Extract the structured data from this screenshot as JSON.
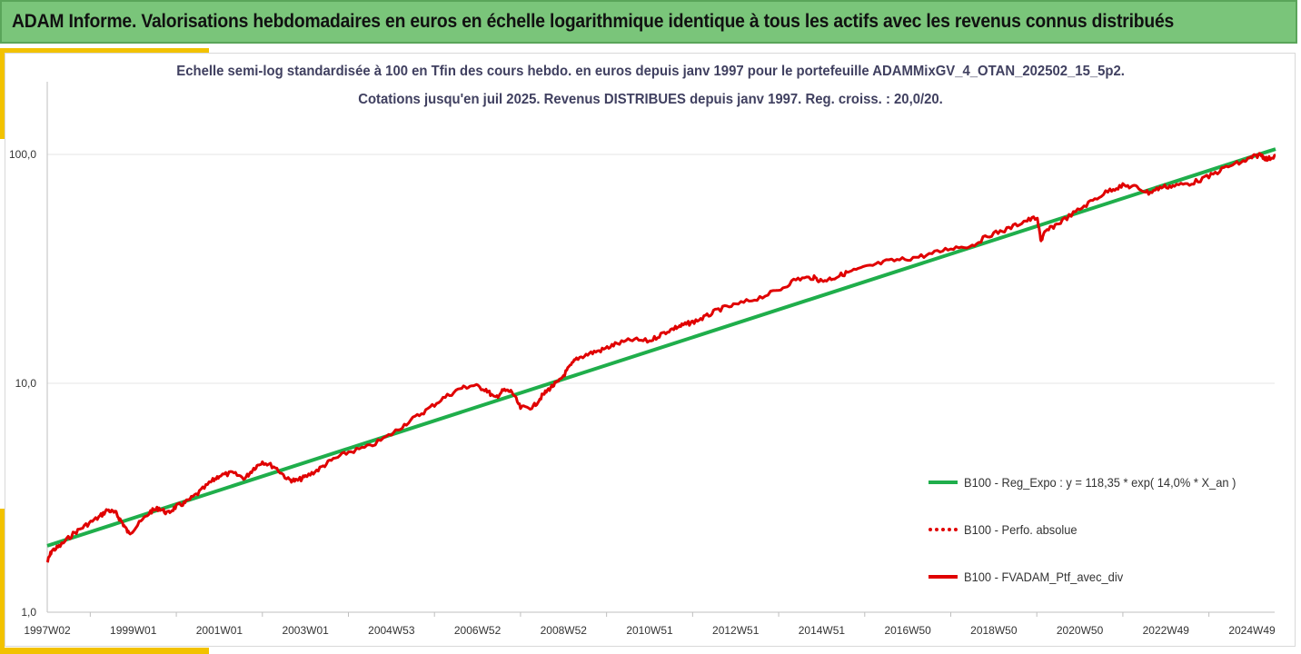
{
  "banner": {
    "title": "ADAM Informe. Valorisations hebdomadaires en euros en échelle logarithmique identique à tous les actifs avec les revenus connus distribués"
  },
  "colors": {
    "banner_bg": "#7ac57a",
    "gold_accent": "#f2c200",
    "regression_line": "#1fae4b",
    "portfolio_line": "#e00000"
  },
  "chart_data": {
    "type": "line",
    "title": "Echelle semi-log standardisée  à 100 en Tfin des cours hebdo.  en euros depuis janv 1997 pour le portefeuille ADAMMixGV_4_OTAN_202502_15_5p2.",
    "subtitle": "Cotations  jusqu'en juil 2025. Revenus DISTRIBUES depuis janv 1997. Reg. croiss. : 20,0/20.",
    "y_scale": "log",
    "ylim": [
      1,
      100
    ],
    "y_ticks": [
      {
        "value": 1,
        "label": "1,0"
      },
      {
        "value": 10,
        "label": "10,0"
      },
      {
        "value": 100,
        "label": "100,0"
      }
    ],
    "x_range_years": [
      1997.0,
      2025.55
    ],
    "x_ticks": [
      {
        "label": "1997W02",
        "year": 1997.0
      },
      {
        "label": "1999W01",
        "year": 1999.0
      },
      {
        "label": "2001W01",
        "year": 2001.0
      },
      {
        "label": "2003W01",
        "year": 2003.0
      },
      {
        "label": "2004W53",
        "year": 2005.0
      },
      {
        "label": "2006W52",
        "year": 2007.0
      },
      {
        "label": "2008W52",
        "year": 2009.0
      },
      {
        "label": "2010W51",
        "year": 2011.0
      },
      {
        "label": "2012W51",
        "year": 2013.0
      },
      {
        "label": "2014W51",
        "year": 2015.0
      },
      {
        "label": "2016W50",
        "year": 2017.0
      },
      {
        "label": "2018W50",
        "year": 2019.0
      },
      {
        "label": "2020W50",
        "year": 2021.0
      },
      {
        "label": "2022W49",
        "year": 2023.0
      },
      {
        "label": "2024W49",
        "year": 2025.0
      }
    ],
    "grid": "horizontal",
    "legend_position": "right",
    "series": [
      {
        "name": "B100 - Reg_Expo : y = 118,35 * exp( 14,0% *  X_an )",
        "style": "solid-green",
        "x": [
          1997.0,
          2025.55
        ],
        "y": [
          1.95,
          105.5
        ]
      },
      {
        "name": "B100 - Perfo. absolue",
        "style": "dotted-red",
        "x": [],
        "y": []
      },
      {
        "name": "B100 - FVADAM_Ptf_avec_div",
        "style": "solid-red",
        "x": [
          1997.0,
          1997.1,
          1997.3,
          1997.6,
          1997.9,
          1998.2,
          1998.4,
          1998.6,
          1998.75,
          1998.9,
          1999.1,
          1999.4,
          1999.6,
          1999.8,
          2000.0,
          2000.2,
          2000.5,
          2000.8,
          2001.0,
          2001.3,
          2001.6,
          2001.8,
          2002.0,
          2002.3,
          2002.6,
          2002.8,
          2003.0,
          2003.3,
          2003.6,
          2004.0,
          2004.5,
          2005.0,
          2005.4,
          2005.8,
          2006.2,
          2006.6,
          2006.9,
          2007.2,
          2007.4,
          2007.6,
          2007.8,
          2008.0,
          2008.3,
          2008.5,
          2008.7,
          2008.9,
          2009.1,
          2009.3,
          2009.6,
          2009.9,
          2010.2,
          2010.6,
          2011.0,
          2011.3,
          2011.6,
          2011.8,
          2012.0,
          2012.3,
          2012.6,
          2013.0,
          2013.5,
          2014.0,
          2014.4,
          2014.8,
          2015.0,
          2015.3,
          2015.6,
          2016.0,
          2016.5,
          2017.0,
          2017.5,
          2018.0,
          2018.5,
          2018.9,
          2019.3,
          2019.7,
          2020.0,
          2020.1,
          2020.2,
          2020.5,
          2020.9,
          2021.3,
          2021.7,
          2022.0,
          2022.3,
          2022.6,
          2022.9,
          2023.2,
          2023.6,
          2024.0,
          2024.4,
          2024.8,
          2025.0,
          2025.2,
          2025.35,
          2025.55
        ],
        "y": [
          1.65,
          1.85,
          1.95,
          2.2,
          2.4,
          2.6,
          2.8,
          2.7,
          2.45,
          2.2,
          2.4,
          2.75,
          2.85,
          2.7,
          2.9,
          3.0,
          3.3,
          3.7,
          3.95,
          4.05,
          3.85,
          4.25,
          4.55,
          4.3,
          3.8,
          3.75,
          3.9,
          4.2,
          4.6,
          5.0,
          5.3,
          6.0,
          6.8,
          7.6,
          8.6,
          9.5,
          9.8,
          9.4,
          8.6,
          9.3,
          9.2,
          7.8,
          7.9,
          8.8,
          9.6,
          10.2,
          11.5,
          12.8,
          13.5,
          14.0,
          14.8,
          15.5,
          15.3,
          16.5,
          17.5,
          18.0,
          18.5,
          19.5,
          21.0,
          22.0,
          23.5,
          25.5,
          28.5,
          29.0,
          28.0,
          29.0,
          30.5,
          32.0,
          34.0,
          35.0,
          36.5,
          39.0,
          40.0,
          44.5,
          47.0,
          51.0,
          53.0,
          42.0,
          46.0,
          50.0,
          56.0,
          63.0,
          70.0,
          73.0,
          72.0,
          68.0,
          72.0,
          73.0,
          75.0,
          80.0,
          88.0,
          93.0,
          97.0,
          100.0,
          95.0,
          99.0
        ]
      }
    ]
  }
}
